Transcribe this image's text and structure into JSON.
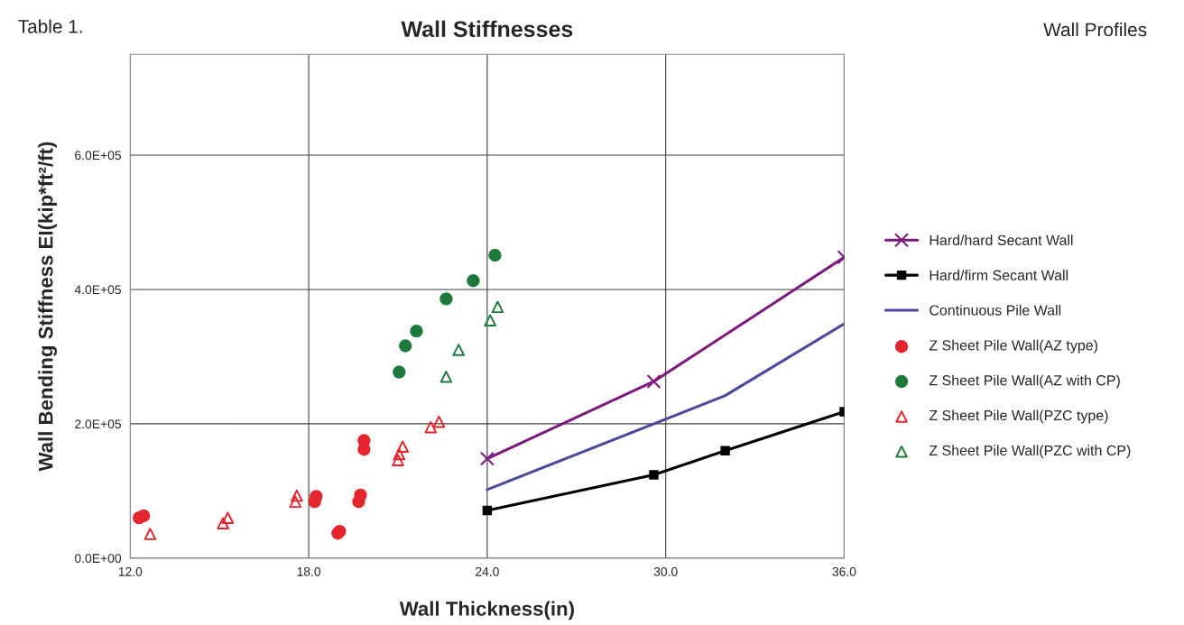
{
  "chart_data": {
    "type": "scatter",
    "title": "Wall Stiffnesses",
    "xlabel": "Wall Thickness(in)",
    "ylabel": "Wall Bending Stiffness EI(kip*ft²/ft)",
    "annotations": [
      "Table 1.",
      "Wall Profiles"
    ],
    "xlim": [
      12,
      36
    ],
    "xticks": [
      {
        "value": 12,
        "label": "12.0"
      },
      {
        "value": 18,
        "label": "18.0"
      },
      {
        "value": 24,
        "label": "24.0"
      },
      {
        "value": 30,
        "label": "30.0"
      },
      {
        "value": 36,
        "label": "36.0"
      }
    ],
    "ylim": [
      0,
      750000
    ],
    "yticks": [
      {
        "value": 0,
        "label": "0.0E+00"
      },
      {
        "value": 200000,
        "label": "2.0E+05"
      },
      {
        "value": 400000,
        "label": "4.0E+05"
      },
      {
        "value": 600000,
        "label": "6.0E+05"
      }
    ],
    "grid": true,
    "legend": "right",
    "series": [
      {
        "name": "Hard/hard Secant Wall",
        "type": "line",
        "marker": "cross",
        "color": "#7b1a7b",
        "x": [
          24,
          29.6,
          36
        ],
        "values": [
          148000,
          263000,
          448000
        ]
      },
      {
        "name": "Hard/firm Secant Wall",
        "type": "line",
        "marker": "square",
        "color": "#000000",
        "x": [
          24,
          29.6,
          32,
          36
        ],
        "values": [
          71000,
          124000,
          160000,
          218000
        ]
      },
      {
        "name": "Continuous Pile Wall",
        "type": "line",
        "marker": "none",
        "color": "#4b4a9a",
        "x": [
          24,
          32,
          36
        ],
        "values": [
          102000,
          242000,
          349000
        ]
      },
      {
        "name": "Z Sheet Pile Wall(AZ type)",
        "marker": "circle",
        "color": "#e3262d",
        "x": [
          12.3,
          12.45,
          18.25,
          18.2,
          19.74,
          19.68,
          18.98,
          19.04,
          19.86,
          19.86
        ],
        "values": [
          60000,
          63000,
          92000,
          84000,
          94000,
          84000,
          37000,
          40000,
          175000,
          162000
        ]
      },
      {
        "name": "Z Sheet Pile Wall(AZ with CP)",
        "marker": "circle",
        "color": "#1e7a3c",
        "x": [
          24.26,
          23.53,
          22.62,
          21.62,
          21.25,
          21.04
        ],
        "values": [
          451000,
          413000,
          386000,
          338000,
          316000,
          277000
        ]
      },
      {
        "name": "Z Sheet Pile Wall(PZC type)",
        "marker": "triangle",
        "color": "#e3262d",
        "x": [
          12.67,
          15.28,
          15.12,
          17.6,
          17.55,
          21.16,
          21.04,
          21.0,
          22.1,
          22.38
        ],
        "values": [
          36000,
          60000,
          52000,
          93000,
          84000,
          166000,
          155000,
          146000,
          195000,
          203000
        ]
      },
      {
        "name": "Z Sheet Pile Wall(PZC with CP)",
        "marker": "triangle",
        "color": "#1e7a3c",
        "x": [
          24.35,
          24.1,
          23.04,
          22.62
        ],
        "values": [
          374000,
          354000,
          310000,
          270000
        ]
      }
    ]
  }
}
